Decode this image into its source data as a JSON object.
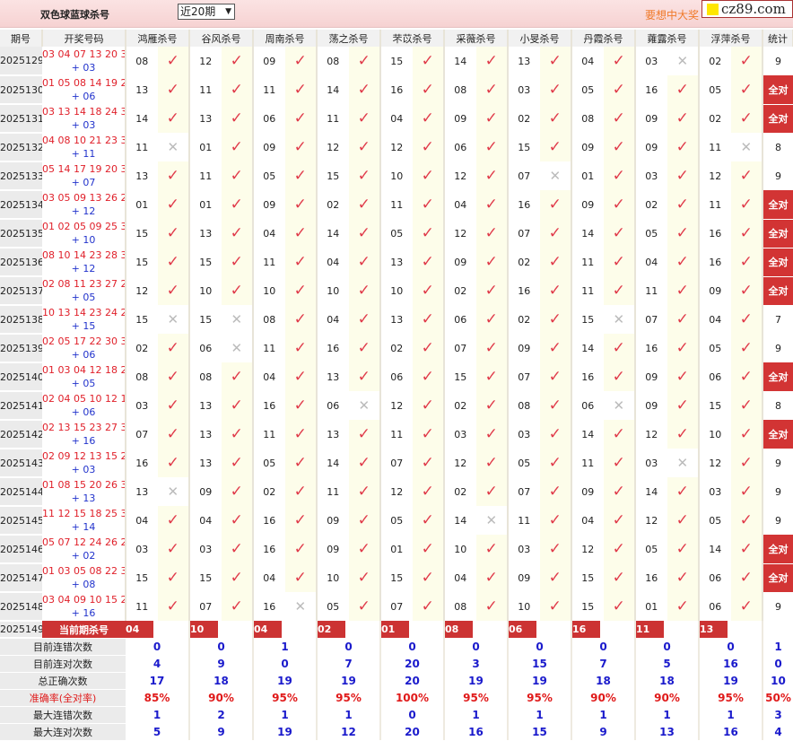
{
  "header": {
    "title": "双色球蓝球杀号",
    "period_select": "近20期",
    "promo": "要想中大奖",
    "logo": "cz89.com"
  },
  "columns": [
    "期号",
    "开奖号码",
    "鸿雁杀号",
    "谷风杀号",
    "周南杀号",
    "荡之杀号",
    "芣苡杀号",
    "采薇杀号",
    "小旻杀号",
    "丹霞杀号",
    "蕹露杀号",
    "浮萍杀号",
    "统计"
  ],
  "marks": {
    "hit": "✓",
    "miss": "✕",
    "all_correct": "全对"
  },
  "rows": [
    {
      "period": "2025129",
      "reds": "03 04 07 13 20 30",
      "blue": "+ 03",
      "kills": [
        "08",
        "12",
        "09",
        "08",
        "15",
        "14",
        "13",
        "04",
        "03",
        "02"
      ],
      "miss": [
        8
      ],
      "stat": "9"
    },
    {
      "period": "2025130",
      "reds": "01 05 08 14 19 23",
      "blue": "+ 06",
      "kills": [
        "13",
        "11",
        "11",
        "14",
        "16",
        "08",
        "03",
        "05",
        "16",
        "05"
      ],
      "miss": [],
      "stat": "全对"
    },
    {
      "period": "2025131",
      "reds": "03 13 14 18 24 31",
      "blue": "+ 03",
      "kills": [
        "14",
        "13",
        "06",
        "11",
        "04",
        "09",
        "02",
        "08",
        "09",
        "02"
      ],
      "miss": [],
      "stat": "全对"
    },
    {
      "period": "2025132",
      "reds": "04 08 10 21 23 32",
      "blue": "+ 11",
      "kills": [
        "11",
        "01",
        "09",
        "12",
        "12",
        "06",
        "15",
        "09",
        "09",
        "11"
      ],
      "miss": [
        0,
        9
      ],
      "stat": "8"
    },
    {
      "period": "2025133",
      "reds": "05 14 17 19 20 33",
      "blue": "+ 07",
      "kills": [
        "13",
        "11",
        "05",
        "15",
        "10",
        "12",
        "07",
        "01",
        "03",
        "12"
      ],
      "miss": [
        6
      ],
      "stat": "9"
    },
    {
      "period": "2025134",
      "reds": "03 05 09 13 26 29",
      "blue": "+ 12",
      "kills": [
        "01",
        "01",
        "09",
        "02",
        "11",
        "04",
        "16",
        "09",
        "02",
        "11"
      ],
      "miss": [],
      "stat": "全对"
    },
    {
      "period": "2025135",
      "reds": "01 02 05 09 25 32",
      "blue": "+ 10",
      "kills": [
        "15",
        "13",
        "04",
        "14",
        "05",
        "12",
        "07",
        "14",
        "05",
        "16"
      ],
      "miss": [],
      "stat": "全对"
    },
    {
      "period": "2025136",
      "reds": "08 10 14 23 28 32",
      "blue": "+ 12",
      "kills": [
        "15",
        "15",
        "11",
        "04",
        "13",
        "09",
        "02",
        "11",
        "04",
        "16"
      ],
      "miss": [],
      "stat": "全对"
    },
    {
      "period": "2025137",
      "reds": "02 08 11 23 27 29",
      "blue": "+ 05",
      "kills": [
        "12",
        "10",
        "10",
        "10",
        "10",
        "02",
        "16",
        "11",
        "11",
        "09"
      ],
      "miss": [],
      "stat": "全对"
    },
    {
      "period": "2025138",
      "reds": "10 13 14 23 24 27",
      "blue": "+ 15",
      "kills": [
        "15",
        "15",
        "08",
        "04",
        "13",
        "06",
        "02",
        "15",
        "07",
        "04"
      ],
      "miss": [
        0,
        1,
        7
      ],
      "stat": "7"
    },
    {
      "period": "2025139",
      "reds": "02 05 17 22 30 33",
      "blue": "+ 06",
      "kills": [
        "02",
        "06",
        "11",
        "16",
        "02",
        "07",
        "09",
        "14",
        "16",
        "05"
      ],
      "miss": [
        1
      ],
      "stat": "9"
    },
    {
      "period": "2025140",
      "reds": "01 03 04 12 18 24",
      "blue": "+ 05",
      "kills": [
        "08",
        "08",
        "04",
        "13",
        "06",
        "15",
        "07",
        "16",
        "09",
        "06"
      ],
      "miss": [],
      "stat": "全对"
    },
    {
      "period": "2025141",
      "reds": "02 04 05 10 12 13",
      "blue": "+ 06",
      "kills": [
        "03",
        "13",
        "16",
        "06",
        "12",
        "02",
        "08",
        "06",
        "09",
        "15"
      ],
      "miss": [
        3,
        7
      ],
      "stat": "8"
    },
    {
      "period": "2025142",
      "reds": "02 13 15 23 27 31",
      "blue": "+ 16",
      "kills": [
        "07",
        "13",
        "11",
        "13",
        "11",
        "03",
        "03",
        "14",
        "12",
        "10"
      ],
      "miss": [],
      "stat": "全对"
    },
    {
      "period": "2025143",
      "reds": "02 09 12 13 15 24",
      "blue": "+ 03",
      "kills": [
        "16",
        "13",
        "05",
        "14",
        "07",
        "12",
        "05",
        "11",
        "03",
        "12"
      ],
      "miss": [
        8
      ],
      "stat": "9"
    },
    {
      "period": "2025144",
      "reds": "01 08 15 20 26 33",
      "blue": "+ 13",
      "kills": [
        "13",
        "09",
        "02",
        "11",
        "12",
        "02",
        "07",
        "09",
        "14",
        "03"
      ],
      "miss": [
        0
      ],
      "stat": "9"
    },
    {
      "period": "2025145",
      "reds": "11 12 15 18 25 32",
      "blue": "+ 14",
      "kills": [
        "04",
        "04",
        "16",
        "09",
        "05",
        "14",
        "11",
        "04",
        "12",
        "05"
      ],
      "miss": [
        5
      ],
      "stat": "9"
    },
    {
      "period": "2025146",
      "reds": "05 07 12 24 26 28",
      "blue": "+ 02",
      "kills": [
        "03",
        "03",
        "16",
        "09",
        "01",
        "10",
        "03",
        "12",
        "05",
        "14"
      ],
      "miss": [],
      "stat": "全对"
    },
    {
      "period": "2025147",
      "reds": "01 03 05 08 22 33",
      "blue": "+ 08",
      "kills": [
        "15",
        "15",
        "04",
        "10",
        "15",
        "04",
        "09",
        "15",
        "16",
        "06"
      ],
      "miss": [],
      "stat": "全对"
    },
    {
      "period": "2025148",
      "reds": "03 04 09 10 15 22",
      "blue": "+ 16",
      "kills": [
        "11",
        "07",
        "16",
        "05",
        "07",
        "08",
        "10",
        "15",
        "01",
        "06"
      ],
      "miss": [
        2
      ],
      "stat": "9"
    }
  ],
  "current": {
    "period": "2025149",
    "label": "当前期杀号",
    "kills": [
      "04",
      "10",
      "04",
      "02",
      "01",
      "08",
      "06",
      "16",
      "11",
      "13"
    ]
  },
  "summary": [
    {
      "label": "目前连错次数",
      "values": [
        "0",
        "0",
        "1",
        "0",
        "0",
        "0",
        "0",
        "0",
        "0",
        "0",
        "1"
      ]
    },
    {
      "label": "目前连对次数",
      "values": [
        "4",
        "9",
        "0",
        "7",
        "20",
        "3",
        "15",
        "7",
        "5",
        "16",
        "0"
      ]
    },
    {
      "label": "总正确次数",
      "values": [
        "17",
        "18",
        "19",
        "19",
        "20",
        "19",
        "19",
        "18",
        "18",
        "19",
        "10"
      ]
    },
    {
      "label": "准确率(全对率)",
      "values": [
        "85%",
        "90%",
        "95%",
        "95%",
        "100%",
        "95%",
        "95%",
        "90%",
        "90%",
        "95%",
        "50%"
      ]
    },
    {
      "label": "最大连错次数",
      "values": [
        "1",
        "2",
        "1",
        "1",
        "0",
        "1",
        "1",
        "1",
        "1",
        "1",
        "3"
      ]
    },
    {
      "label": "最大连对次数",
      "values": [
        "5",
        "9",
        "19",
        "12",
        "20",
        "16",
        "15",
        "9",
        "13",
        "16",
        "4"
      ]
    }
  ],
  "colors": {
    "accent_red": "#d23434",
    "hit": "#e03a4a",
    "stat_blue": "#1a1acc",
    "promo": "#f07a2a"
  }
}
